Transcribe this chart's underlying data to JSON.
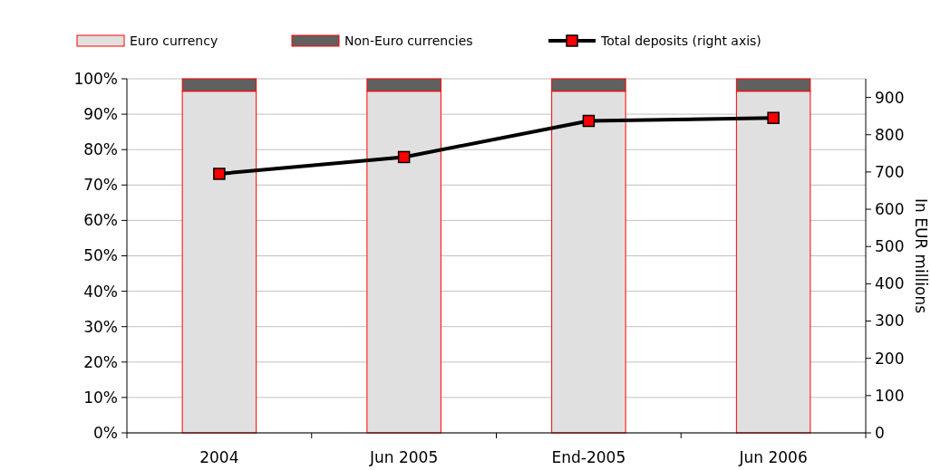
{
  "chart_data": {
    "type": "bar",
    "stacked": true,
    "categories": [
      "2004",
      "Jun 2005",
      "End-2005",
      "Jun 2006"
    ],
    "series": [
      {
        "name": "Euro currency",
        "color": "#e0e0e0",
        "values": [
          96.5,
          96.5,
          96.5,
          96.5
        ]
      },
      {
        "name": "Non-Euro currencies",
        "color": "#606060",
        "values": [
          3.5,
          3.5,
          3.5,
          3.5
        ]
      },
      {
        "name": "Total deposits (right axis)",
        "type": "line",
        "axis": "y2",
        "color": "#000000",
        "marker": "square",
        "values": [
          695,
          740,
          837,
          845
        ]
      }
    ],
    "ylim": [
      0,
      100
    ],
    "yticks": [
      {
        "value": 0,
        "label": "0%"
      },
      {
        "value": 10,
        "label": "10%"
      },
      {
        "value": 20,
        "label": "20%"
      },
      {
        "value": 30,
        "label": "30%"
      },
      {
        "value": 40,
        "label": "40%"
      },
      {
        "value": 50,
        "label": "50%"
      },
      {
        "value": 60,
        "label": "60%"
      },
      {
        "value": 70,
        "label": "70%"
      },
      {
        "value": 80,
        "label": "80%"
      },
      {
        "value": 90,
        "label": "90%"
      },
      {
        "value": 100,
        "label": "100%"
      }
    ],
    "y2lim": [
      0,
      950
    ],
    "y2ticks": [
      0,
      100,
      200,
      300,
      400,
      500,
      600,
      700,
      800,
      900
    ],
    "y2label": "In EUR millions",
    "grid": "y",
    "legend": "top"
  }
}
